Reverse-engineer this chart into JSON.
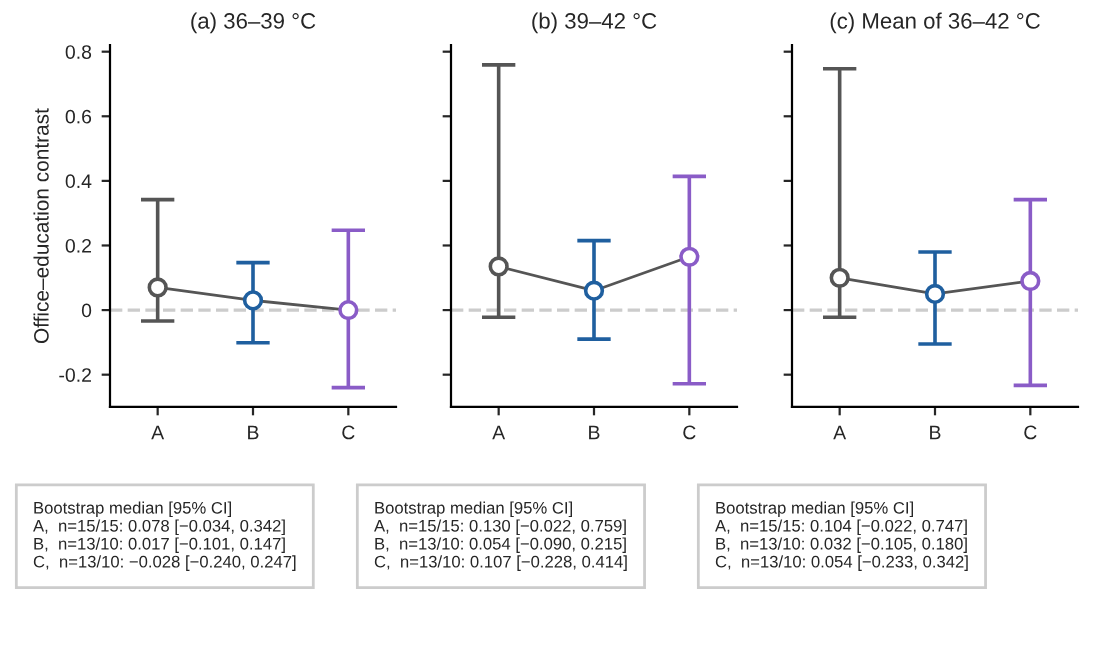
{
  "chart_data": [
    {
      "type": "line",
      "title": "(a) 36–39 °C",
      "ylabel": "Office–education contrast",
      "categories": [
        "A",
        "B",
        "C"
      ],
      "series": [
        {
          "color": "#555555",
          "colors": [
            "#555555",
            "#1f5f9f",
            "#8a5cc7"
          ],
          "values": [
            0.07,
            0.03,
            0.0
          ],
          "errors": [
            [
              -0.034,
              0.342
            ],
            [
              -0.101,
              0.147
            ],
            [
              -0.24,
              0.247
            ]
          ]
        }
      ],
      "ylim": [
        -0.3,
        0.82
      ],
      "yticks": [
        -0.2,
        0,
        0.2,
        0.4,
        0.6,
        0.8
      ],
      "marker": "circle",
      "line_style": "solid",
      "grid": false,
      "ref_lines": [
        {
          "axis": "y",
          "value": 0,
          "color": "#cccccc",
          "line_style": "dashed"
        }
      ],
      "annotations": [
        "Bootstrap median [95% CI]\nA,  n=15/15: 0.078 [−0.034, 0.342]\nB,  n=13/10: 0.017 [−0.101, 0.147]\nC,  n=13/10: −0.028 [−0.240, 0.247]"
      ]
    },
    {
      "type": "line",
      "title": "(b) 39–42 °C",
      "categories": [
        "A",
        "B",
        "C"
      ],
      "series": [
        {
          "color": "#555555",
          "colors": [
            "#555555",
            "#1f5f9f",
            "#8a5cc7"
          ],
          "values": [
            0.135,
            0.06,
            0.165
          ],
          "errors": [
            [
              -0.022,
              0.759
            ],
            [
              -0.09,
              0.215
            ],
            [
              -0.228,
              0.414
            ]
          ]
        }
      ],
      "ylim": [
        -0.3,
        0.82
      ],
      "yticks": [
        -0.2,
        0,
        0.2,
        0.4,
        0.6,
        0.8
      ],
      "tick_labels": "x",
      "marker": "circle",
      "line_style": "solid",
      "grid": false,
      "ref_lines": [
        {
          "axis": "y",
          "value": 0,
          "color": "#cccccc",
          "line_style": "dashed"
        }
      ],
      "annotations": [
        "Bootstrap median [95% CI]\nA,  n=15/15: 0.130 [−0.022, 0.759]\nB,  n=13/10: 0.054 [−0.090, 0.215]\nC,  n=13/10: 0.107 [−0.228, 0.414]"
      ]
    },
    {
      "type": "line",
      "title": "(c) Mean of 36–42 °C",
      "categories": [
        "A",
        "B",
        "C"
      ],
      "series": [
        {
          "color": "#555555",
          "colors": [
            "#555555",
            "#1f5f9f",
            "#8a5cc7"
          ],
          "values": [
            0.1,
            0.05,
            0.09
          ],
          "errors": [
            [
              -0.022,
              0.747
            ],
            [
              -0.105,
              0.18
            ],
            [
              -0.233,
              0.342
            ]
          ]
        }
      ],
      "ylim": [
        -0.3,
        0.82
      ],
      "yticks": [
        -0.2,
        0,
        0.2,
        0.4,
        0.6,
        0.8
      ],
      "tick_labels": "x",
      "marker": "circle",
      "line_style": "solid",
      "grid": false,
      "ref_lines": [
        {
          "axis": "y",
          "value": 0,
          "color": "#cccccc",
          "line_style": "dashed"
        }
      ],
      "annotations": [
        "Bootstrap median [95% CI]\nA,  n=15/15: 0.104 [−0.022, 0.747]\nB,  n=13/10: 0.032 [−0.105, 0.180]\nC,  n=13/10: 0.054 [−0.233, 0.342]"
      ]
    }
  ]
}
